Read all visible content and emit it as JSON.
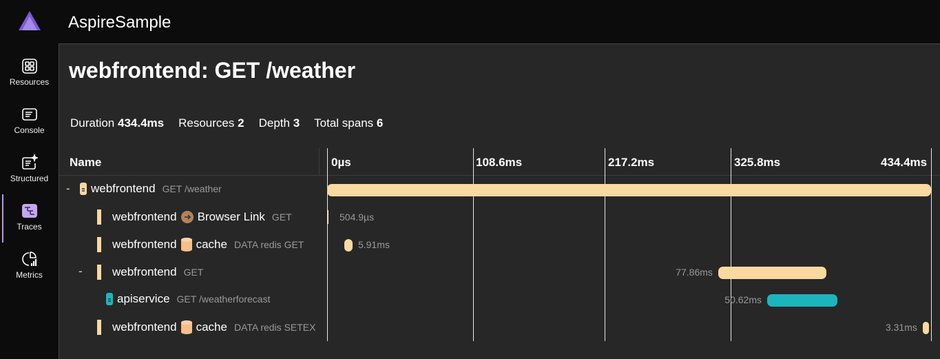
{
  "app": {
    "title": "AspireSample"
  },
  "nav": [
    {
      "label": "Resources",
      "icon": "resources-icon"
    },
    {
      "label": "Console",
      "icon": "console-icon"
    },
    {
      "label": "Structured",
      "icon": "structured-icon"
    },
    {
      "label": "Traces",
      "icon": "traces-icon",
      "active": true
    },
    {
      "label": "Metrics",
      "icon": "metrics-icon"
    }
  ],
  "page": {
    "title": "webfrontend: GET /weather"
  },
  "stats": {
    "duration_label": "Duration",
    "duration": "434.4ms",
    "resources_label": "Resources",
    "resources": "2",
    "depth_label": "Depth",
    "depth": "3",
    "spans_label": "Total spans",
    "spans": "6"
  },
  "table": {
    "name_header": "Name",
    "ticks": [
      "0µs",
      "108.6ms",
      "217.2ms",
      "325.8ms",
      "434.4ms"
    ]
  },
  "colors": {
    "webfrontend": "#f9d9a0",
    "apiservice": "#1db5bd"
  },
  "spans": [
    {
      "collapse": "-",
      "resource": "webfrontend",
      "target": "",
      "detail": "GET /weather",
      "start_ms": 0,
      "duration_ms": 434.4,
      "duration": "",
      "icon": "resource-icon"
    },
    {
      "collapse": "",
      "resource": "webfrontend",
      "target": "Browser Link",
      "detail": "GET",
      "start_ms": 0.5,
      "duration_ms": 0.5,
      "duration": "504.9µs",
      "icon": "arrow-right-icon"
    },
    {
      "collapse": "",
      "resource": "webfrontend",
      "target": "cache",
      "detail": "DATA redis GET",
      "start_ms": 12.4,
      "duration_ms": 5.91,
      "duration": "5.91ms",
      "icon": "database-icon"
    },
    {
      "collapse": "-",
      "resource": "webfrontend",
      "target": "",
      "detail": "GET",
      "start_ms": 281.3,
      "duration_ms": 77.86,
      "duration": "77.86ms",
      "icon": ""
    },
    {
      "collapse": "",
      "resource": "apiservice",
      "target": "",
      "detail": "GET /weatherforecast",
      "start_ms": 316.5,
      "duration_ms": 50.62,
      "duration": "50.62ms",
      "icon": "resource-icon"
    },
    {
      "collapse": "",
      "resource": "webfrontend",
      "target": "cache",
      "detail": "DATA redis SETEX",
      "start_ms": 428.4,
      "duration_ms": 3.31,
      "duration": "3.31ms",
      "icon": "database-icon"
    }
  ]
}
